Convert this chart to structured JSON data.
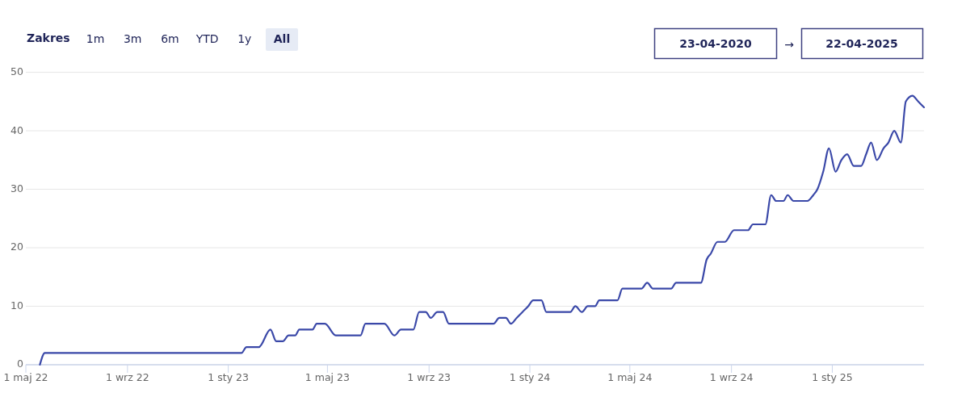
{
  "chart_data": {
    "type": "line",
    "x": [
      "2022-05-18",
      "2022-05-24",
      "2023-01-17",
      "2023-01-23",
      "2023-02-07",
      "2023-02-21",
      "2023-02-28",
      "2023-03-08",
      "2023-03-15",
      "2023-03-23",
      "2023-03-28",
      "2023-04-13",
      "2023-04-18",
      "2023-04-28",
      "2023-05-11",
      "2023-06-10",
      "2023-06-16",
      "2023-07-09",
      "2023-07-21",
      "2023-07-29",
      "2023-08-13",
      "2023-08-20",
      "2023-08-28",
      "2023-09-03",
      "2023-09-11",
      "2023-09-18",
      "2023-09-25",
      "2023-11-18",
      "2023-11-25",
      "2023-12-03",
      "2023-12-09",
      "2023-12-16",
      "2023-12-23",
      "2023-12-30",
      "2024-01-05",
      "2024-01-15",
      "2024-01-21",
      "2024-02-19",
      "2024-02-25",
      "2024-03-04",
      "2024-03-11",
      "2024-03-20",
      "2024-03-25",
      "2024-04-16",
      "2024-04-22",
      "2024-05-15",
      "2024-05-22",
      "2024-05-29",
      "2024-06-20",
      "2024-06-26",
      "2024-07-26",
      "2024-08-02",
      "2024-08-07",
      "2024-08-15",
      "2024-08-24",
      "2024-09-04",
      "2024-09-21",
      "2024-09-27",
      "2024-10-12",
      "2024-10-19",
      "2024-10-25",
      "2024-11-03",
      "2024-11-08",
      "2024-11-15",
      "2024-12-02",
      "2024-12-09",
      "2024-12-14",
      "2024-12-21",
      "2024-12-28",
      "2025-01-05",
      "2025-01-12",
      "2025-01-19",
      "2025-01-27",
      "2025-02-05",
      "2025-02-11",
      "2025-02-17",
      "2025-02-24",
      "2025-03-04",
      "2025-03-10",
      "2025-03-17",
      "2025-03-25",
      "2025-03-31",
      "2025-04-08",
      "2025-04-15",
      "2025-04-22"
    ],
    "values": [
      0,
      2,
      2,
      3,
      3,
      6,
      4,
      4,
      5,
      5,
      6,
      6,
      7,
      7,
      5,
      5,
      7,
      7,
      5,
      6,
      6,
      9,
      9,
      8,
      9,
      9,
      7,
      7,
      8,
      8,
      7,
      8,
      9,
      10,
      11,
      11,
      9,
      9,
      10,
      9,
      10,
      10,
      11,
      11,
      13,
      13,
      14,
      13,
      13,
      14,
      14,
      18,
      19,
      21,
      21,
      23,
      23,
      24,
      24,
      29,
      28,
      28,
      29,
      28,
      28,
      29,
      30,
      33,
      37,
      33,
      35,
      36,
      34,
      34,
      36,
      38,
      35,
      37,
      38,
      40,
      38,
      45,
      46,
      45,
      44
    ],
    "color": "#3a48a8",
    "xlim": [
      "2022-05-01",
      "2025-04-22"
    ],
    "xticks": [
      {
        "value": "2022-05-01",
        "label": "1 maj 22"
      },
      {
        "value": "2022-09-01",
        "label": "1 wrz 22"
      },
      {
        "value": "2023-01-01",
        "label": "1 sty 23"
      },
      {
        "value": "2023-05-01",
        "label": "1 maj 23"
      },
      {
        "value": "2023-09-01",
        "label": "1 wrz 23"
      },
      {
        "value": "2024-01-01",
        "label": "1 sty 24"
      },
      {
        "value": "2024-05-01",
        "label": "1 maj 24"
      },
      {
        "value": "2024-09-01",
        "label": "1 wrz 24"
      },
      {
        "value": "2025-01-01",
        "label": "1 sty 25"
      }
    ],
    "ylim": [
      0,
      50
    ],
    "yticks": [
      0,
      10,
      20,
      30,
      40,
      50
    ],
    "grid": "y",
    "annotations": [
      "Zakres",
      "1m",
      "3m",
      "6m",
      "YTD",
      "1y",
      "All",
      "23-04-2020",
      "→",
      "22-04-2025"
    ]
  }
}
